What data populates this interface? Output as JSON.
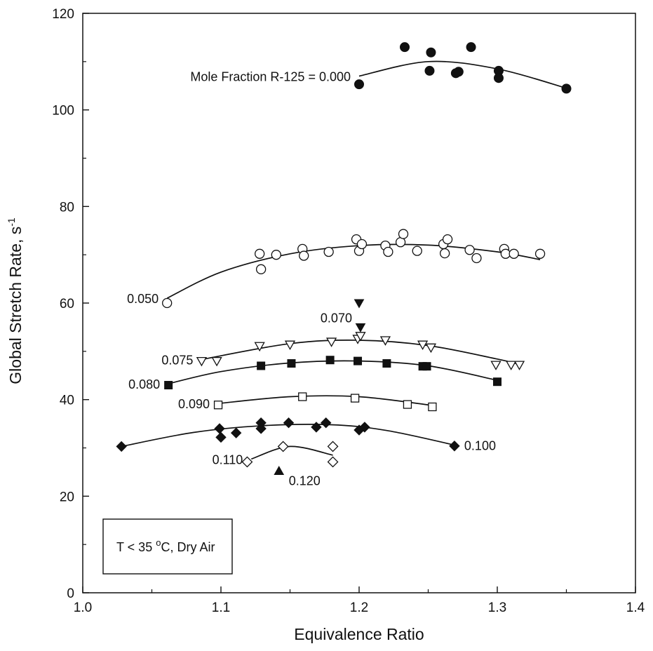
{
  "chart_data": {
    "type": "scatter",
    "xlabel": "Equivalence Ratio",
    "ylabel": "Global Stretch Rate, s",
    "ylabel_superscript": "-1",
    "xlim": [
      1.0,
      1.4
    ],
    "ylim": [
      0,
      120
    ],
    "x_ticks": [
      "1.0",
      "1.1",
      "1.2",
      "1.3",
      "1.4"
    ],
    "y_ticks": [
      "0",
      "20",
      "40",
      "60",
      "80",
      "100",
      "120"
    ],
    "x_tick_values": [
      1.0,
      1.1,
      1.2,
      1.3,
      1.4
    ],
    "y_tick_values": [
      0,
      20,
      40,
      60,
      80,
      100,
      120
    ],
    "grid": false,
    "annotation_box": {
      "text_prefix": "T < 35 ",
      "degree": "o",
      "text_suffix": "C,  Dry Air"
    },
    "series": [
      {
        "name": "Mole Fraction R-125 = 0.000",
        "marker": "circle-filled",
        "label_position": "left-of-curve",
        "points": [
          [
            1.2,
            105.3
          ],
          [
            1.233,
            113.0
          ],
          [
            1.251,
            108.1
          ],
          [
            1.252,
            111.9
          ],
          [
            1.27,
            107.6
          ],
          [
            1.272,
            107.9
          ],
          [
            1.281,
            113.0
          ],
          [
            1.301,
            108.1
          ],
          [
            1.301,
            106.6
          ],
          [
            1.35,
            104.4
          ]
        ],
        "fit": [
          [
            1.2,
            107.0
          ],
          [
            1.25,
            110.0
          ],
          [
            1.3,
            108.5
          ],
          [
            1.35,
            104.5
          ]
        ]
      },
      {
        "name": "0.050",
        "marker": "circle-open",
        "label_position": "left-of-curve",
        "points": [
          [
            1.061,
            60.0
          ],
          [
            1.128,
            70.2
          ],
          [
            1.129,
            67.0
          ],
          [
            1.14,
            70.0
          ],
          [
            1.159,
            71.2
          ],
          [
            1.16,
            69.8
          ],
          [
            1.178,
            70.6
          ],
          [
            1.198,
            73.2
          ],
          [
            1.2,
            70.8
          ],
          [
            1.202,
            72.2
          ],
          [
            1.219,
            71.9
          ],
          [
            1.221,
            70.6
          ],
          [
            1.23,
            72.6
          ],
          [
            1.232,
            74.3
          ],
          [
            1.242,
            70.8
          ],
          [
            1.261,
            72.2
          ],
          [
            1.262,
            70.3
          ],
          [
            1.264,
            73.2
          ],
          [
            1.28,
            71.0
          ],
          [
            1.285,
            69.3
          ],
          [
            1.305,
            71.2
          ],
          [
            1.306,
            70.2
          ],
          [
            1.312,
            70.2
          ],
          [
            1.331,
            70.2
          ]
        ],
        "fit": [
          [
            1.061,
            61.0
          ],
          [
            1.1,
            66.4
          ],
          [
            1.15,
            70.2
          ],
          [
            1.2,
            71.9
          ],
          [
            1.25,
            72.0
          ],
          [
            1.3,
            70.6
          ],
          [
            1.331,
            69.0
          ]
        ]
      },
      {
        "name": "0.070",
        "marker": "triangle-down-filled",
        "label_position": "left",
        "points": [
          [
            1.2,
            60.0
          ],
          [
            1.201,
            55.0
          ]
        ]
      },
      {
        "name": "0.075",
        "marker": "triangle-down-open",
        "label_position": "left-of-curve",
        "points": [
          [
            1.086,
            48.0
          ],
          [
            1.097,
            48.0
          ],
          [
            1.128,
            51.1
          ],
          [
            1.15,
            51.4
          ],
          [
            1.18,
            52.0
          ],
          [
            1.199,
            52.6
          ],
          [
            1.201,
            53.2
          ],
          [
            1.219,
            52.3
          ],
          [
            1.246,
            51.4
          ],
          [
            1.252,
            50.8
          ],
          [
            1.299,
            47.2
          ],
          [
            1.31,
            47.2
          ],
          [
            1.316,
            47.2
          ]
        ],
        "fit": [
          [
            1.086,
            48.3
          ],
          [
            1.15,
            51.6
          ],
          [
            1.2,
            52.3
          ],
          [
            1.25,
            51.2
          ],
          [
            1.3,
            48.4
          ],
          [
            1.316,
            47.3
          ]
        ]
      },
      {
        "name": "0.080",
        "marker": "square-filled",
        "label_position": "left-of-curve",
        "points": [
          [
            1.062,
            43.0
          ],
          [
            1.129,
            47.0
          ],
          [
            1.151,
            47.5
          ],
          [
            1.179,
            48.2
          ],
          [
            1.199,
            48.0
          ],
          [
            1.22,
            47.5
          ],
          [
            1.246,
            46.9
          ],
          [
            1.249,
            46.9
          ],
          [
            1.3,
            43.7
          ]
        ],
        "fit": [
          [
            1.062,
            43.3
          ],
          [
            1.1,
            45.8
          ],
          [
            1.15,
            47.6
          ],
          [
            1.2,
            48.0
          ],
          [
            1.25,
            47.0
          ],
          [
            1.3,
            44.0
          ]
        ]
      },
      {
        "name": "0.090",
        "marker": "square-open",
        "label_position": "left-of-curve",
        "points": [
          [
            1.098,
            38.9
          ],
          [
            1.159,
            40.6
          ],
          [
            1.197,
            40.3
          ],
          [
            1.235,
            39.0
          ],
          [
            1.253,
            38.5
          ]
        ],
        "fit": [
          [
            1.098,
            39.2
          ],
          [
            1.15,
            40.6
          ],
          [
            1.2,
            40.6
          ],
          [
            1.253,
            38.8
          ]
        ]
      },
      {
        "name": "0.100",
        "marker": "diamond-filled",
        "label_position": "right-of-curve",
        "points": [
          [
            1.028,
            30.3
          ],
          [
            1.099,
            34.0
          ],
          [
            1.1,
            32.2
          ],
          [
            1.111,
            33.1
          ],
          [
            1.129,
            35.2
          ],
          [
            1.129,
            34.0
          ],
          [
            1.149,
            35.2
          ],
          [
            1.169,
            34.3
          ],
          [
            1.176,
            35.2
          ],
          [
            1.2,
            33.7
          ],
          [
            1.204,
            34.3
          ],
          [
            1.269,
            30.4
          ]
        ],
        "fit": [
          [
            1.028,
            30.3
          ],
          [
            1.08,
            33.2
          ],
          [
            1.13,
            34.6
          ],
          [
            1.18,
            34.8
          ],
          [
            1.22,
            33.6
          ],
          [
            1.269,
            30.6
          ]
        ]
      },
      {
        "name": "0.110",
        "marker": "diamond-open",
        "label_position": "left-of-curve",
        "points": [
          [
            1.119,
            27.1
          ],
          [
            1.145,
            30.3
          ],
          [
            1.181,
            30.3
          ],
          [
            1.181,
            27.1
          ]
        ],
        "fit": [
          [
            1.122,
            27.7
          ],
          [
            1.15,
            30.3
          ],
          [
            1.181,
            28.5
          ]
        ]
      },
      {
        "name": "0.120",
        "marker": "triangle-up-filled",
        "label_position": "right",
        "points": [
          [
            1.142,
            25.2
          ]
        ]
      }
    ]
  }
}
